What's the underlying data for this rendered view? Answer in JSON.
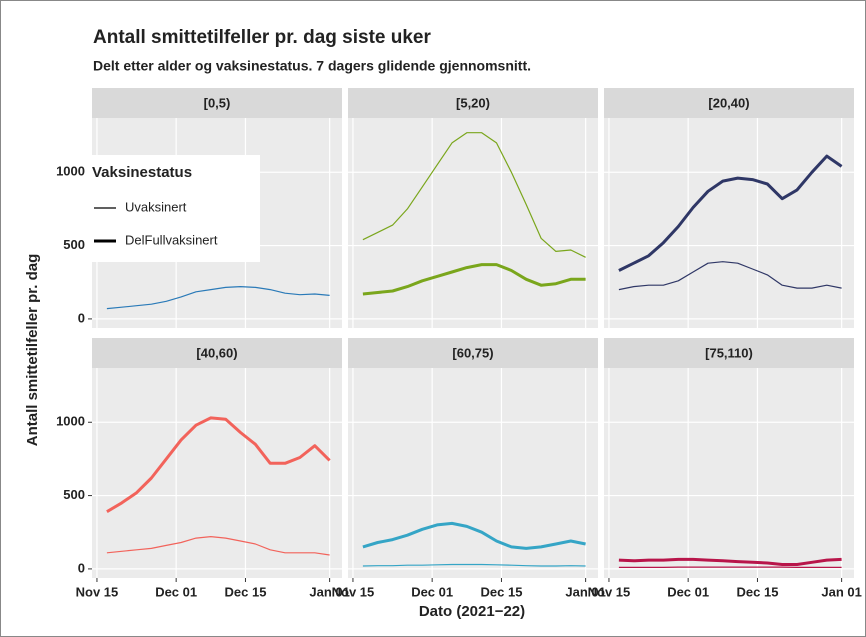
{
  "chart_data": {
    "type": "line",
    "title": "Antall smittetilfeller pr. dag siste uker",
    "subtitle": "Delt etter alder og vaksinestatus. 7 dagers glidende gjennomsnitt.",
    "x_label": "Dato (2021−22)",
    "y_label": "Antall smittetilfeller pr. dag",
    "legend_title": "Vaksinestatus",
    "legend": [
      {
        "name": "Uvaksinert",
        "linewidth": 1.2
      },
      {
        "name": "DelFullvaksinert",
        "linewidth": 3
      }
    ],
    "grid": true,
    "x": [
      2,
      5,
      8,
      11,
      14,
      17,
      20,
      23,
      26,
      29,
      32,
      35,
      38,
      41,
      44,
      47
    ],
    "xlim": [
      -1,
      49.5
    ],
    "xticks": [
      {
        "value": 0,
        "label": "Nov 15"
      },
      {
        "value": 16,
        "label": "Dec 01"
      },
      {
        "value": 30,
        "label": "Dec 15"
      },
      {
        "value": 47,
        "label": "Jan 01"
      }
    ],
    "ylim": [
      -62,
      1370
    ],
    "yticks": [
      0,
      500,
      1000
    ],
    "facets": [
      {
        "label": "[0,5)",
        "series": [
          {
            "name": "Uvaksinert",
            "color": "#2a7ab8",
            "values": [
              70,
              80,
              90,
              100,
              120,
              150,
              185,
              200,
              215,
              220,
              215,
              200,
              175,
              165,
              170,
              160
            ]
          }
        ]
      },
      {
        "label": "[5,20)",
        "series": [
          {
            "name": "Uvaksinert",
            "color": "#7aa61c",
            "values": [
              540,
              590,
              640,
              750,
              900,
              1050,
              1200,
              1270,
              1270,
              1200,
              1000,
              780,
              550,
              460,
              470,
              420
            ]
          },
          {
            "name": "DelFullvaksinert",
            "color": "#7aa61c",
            "values": [
              170,
              180,
              190,
              220,
              260,
              290,
              320,
              350,
              370,
              370,
              330,
              270,
              230,
              240,
              270,
              270
            ]
          }
        ]
      },
      {
        "label": "[20,40)",
        "series": [
          {
            "name": "Uvaksinert",
            "color": "#2f3766",
            "values": [
              200,
              220,
              230,
              230,
              260,
              320,
              380,
              390,
              380,
              340,
              300,
              230,
              210,
              210,
              230,
              210
            ]
          },
          {
            "name": "DelFullvaksinert",
            "color": "#2f3766",
            "values": [
              330,
              380,
              430,
              520,
              630,
              760,
              870,
              940,
              960,
              950,
              920,
              820,
              880,
              1000,
              1110,
              1040
            ]
          }
        ]
      },
      {
        "label": "[40,60)",
        "series": [
          {
            "name": "Uvaksinert",
            "color": "#f2635b",
            "values": [
              110,
              120,
              130,
              140,
              160,
              180,
              210,
              220,
              210,
              190,
              170,
              130,
              110,
              110,
              110,
              95
            ]
          },
          {
            "name": "DelFullvaksinert",
            "color": "#f2635b",
            "values": [
              390,
              450,
              520,
              620,
              750,
              880,
              980,
              1030,
              1020,
              930,
              850,
              720,
              720,
              760,
              840,
              740
            ]
          }
        ]
      },
      {
        "label": "[60,75)",
        "series": [
          {
            "name": "Uvaksinert",
            "color": "#35a5c6",
            "values": [
              20,
              22,
              22,
              25,
              25,
              28,
              30,
              30,
              30,
              28,
              25,
              22,
              20,
              20,
              22,
              20
            ]
          },
          {
            "name": "DelFullvaksinert",
            "color": "#35a5c6",
            "values": [
              150,
              180,
              200,
              230,
              270,
              300,
              310,
              290,
              250,
              190,
              150,
              140,
              150,
              170,
              190,
              170
            ]
          }
        ]
      },
      {
        "label": "[75,110)",
        "series": [
          {
            "name": "Uvaksinert",
            "color": "#b8154a",
            "values": [
              10,
              10,
              10,
              10,
              12,
              12,
              12,
              12,
              12,
              12,
              12,
              12,
              10,
              10,
              10,
              10
            ]
          },
          {
            "name": "DelFullvaksinert",
            "color": "#b8154a",
            "values": [
              60,
              55,
              60,
              60,
              65,
              65,
              60,
              55,
              50,
              45,
              40,
              30,
              30,
              45,
              60,
              65
            ]
          }
        ]
      }
    ]
  }
}
